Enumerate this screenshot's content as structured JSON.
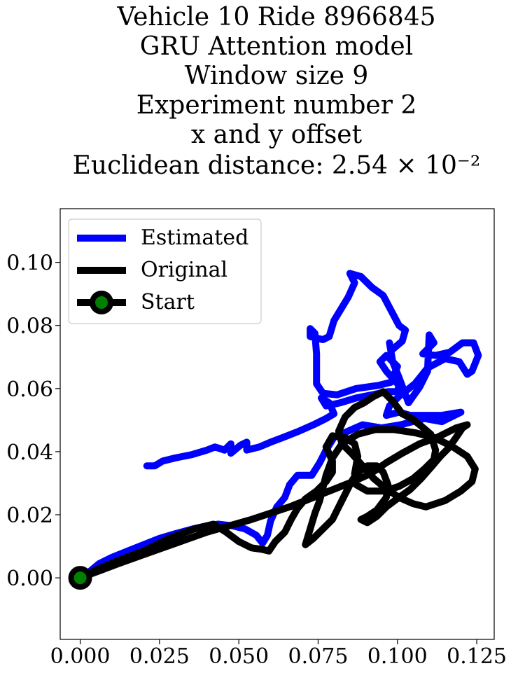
{
  "chart_data": {
    "type": "line",
    "title_lines": [
      "Vehicle 10 Ride 8966845",
      "GRU Attention model",
      "Window size 9",
      "Experiment number 2",
      "x and y offset",
      "Euclidean distance: 2.54 × 10⁻²"
    ],
    "xlabel": "",
    "ylabel": "",
    "xlim": [
      -0.0063,
      0.1305
    ],
    "ylim": [
      -0.0195,
      0.117
    ],
    "xticks": [
      0.0,
      0.025,
      0.05,
      0.075,
      0.1,
      0.125
    ],
    "xtick_labels": [
      "0.000",
      "0.025",
      "0.050",
      "0.075",
      "0.100",
      "0.125"
    ],
    "yticks": [
      0.0,
      0.02,
      0.04,
      0.06,
      0.08,
      0.1
    ],
    "ytick_labels": [
      "0.00",
      "0.02",
      "0.04",
      "0.06",
      "0.08",
      "0.10"
    ],
    "grid": false,
    "legend_position": "upper-left",
    "series": [
      {
        "name": "Estimated",
        "color": "#0000ff",
        "points": [
          [
            0.021,
            0.0355
          ],
          [
            0.0235,
            0.0355
          ],
          [
            0.026,
            0.037
          ],
          [
            0.03,
            0.038
          ],
          [
            0.035,
            0.039
          ],
          [
            0.04,
            0.0405
          ],
          [
            0.0425,
            0.0415
          ],
          [
            0.0455,
            0.0405
          ],
          [
            0.0475,
            0.0425
          ],
          [
            0.0475,
            0.0395
          ],
          [
            0.0505,
            0.042
          ],
          [
            0.0525,
            0.043
          ],
          [
            0.0525,
            0.0405
          ],
          [
            0.0565,
            0.0415
          ],
          [
            0.06,
            0.043
          ],
          [
            0.064,
            0.0445
          ],
          [
            0.069,
            0.0465
          ],
          [
            0.0735,
            0.0485
          ],
          [
            0.0775,
            0.0505
          ],
          [
            0.08,
            0.052
          ],
          [
            0.0785,
            0.0555
          ],
          [
            0.076,
            0.057
          ],
          [
            0.0775,
            0.0545
          ],
          [
            0.082,
            0.0555
          ],
          [
            0.087,
            0.057
          ],
          [
            0.092,
            0.058
          ],
          [
            0.097,
            0.059
          ],
          [
            0.1,
            0.059
          ],
          [
            0.1005,
            0.061
          ],
          [
            0.0965,
            0.0655
          ],
          [
            0.0945,
            0.0685
          ],
          [
            0.0965,
            0.0705
          ],
          [
            0.1,
            0.067
          ],
          [
            0.098,
            0.062
          ],
          [
            0.094,
            0.061
          ],
          [
            0.087,
            0.06
          ],
          [
            0.081,
            0.058
          ],
          [
            0.0765,
            0.0585
          ],
          [
            0.0745,
            0.0615
          ],
          [
            0.0745,
            0.071
          ],
          [
            0.074,
            0.0775
          ],
          [
            0.0725,
            0.079
          ],
          [
            0.0725,
            0.0765
          ],
          [
            0.0765,
            0.0755
          ],
          [
            0.0785,
            0.0765
          ],
          [
            0.08,
            0.0815
          ],
          [
            0.0845,
            0.089
          ],
          [
            0.0865,
            0.0935
          ],
          [
            0.085,
            0.0965
          ],
          [
            0.0885,
            0.0955
          ],
          [
            0.092,
            0.092
          ],
          [
            0.0955,
            0.0895
          ],
          [
            0.1005,
            0.08
          ],
          [
            0.1025,
            0.0785
          ],
          [
            0.1015,
            0.075
          ],
          [
            0.098,
            0.072
          ],
          [
            0.0975,
            0.0745
          ],
          [
            0.0985,
            0.0685
          ],
          [
            0.1005,
            0.0635
          ],
          [
            0.102,
            0.0595
          ],
          [
            0.1035,
            0.0555
          ],
          [
            0.107,
            0.0605
          ],
          [
            0.1095,
            0.0655
          ],
          [
            0.11,
            0.077
          ],
          [
            0.1115,
            0.0745
          ],
          [
            0.108,
            0.071
          ],
          [
            0.112,
            0.0705
          ],
          [
            0.1165,
            0.0715
          ],
          [
            0.1205,
            0.0745
          ],
          [
            0.124,
            0.0745
          ],
          [
            0.1255,
            0.0705
          ],
          [
            0.1235,
            0.0655
          ],
          [
            0.122,
            0.0645
          ],
          [
            0.1195,
            0.0685
          ],
          [
            0.115,
            0.0695
          ],
          [
            0.1095,
            0.0665
          ],
          [
            0.1055,
            0.0615
          ],
          [
            0.1005,
            0.0575
          ],
          [
            0.0975,
            0.0545
          ],
          [
            0.0965,
            0.0515
          ],
          [
            0.1005,
            0.0525
          ],
          [
            0.104,
            0.0515
          ],
          [
            0.1085,
            0.0515
          ],
          [
            0.114,
            0.0515
          ],
          [
            0.12,
            0.0525
          ],
          [
            0.114,
            0.0495
          ],
          [
            0.1085,
            0.0505
          ],
          [
            0.101,
            0.0485
          ],
          [
            0.095,
            0.0475
          ],
          [
            0.089,
            0.0485
          ],
          [
            0.0845,
            0.0465
          ],
          [
            0.08,
            0.0445
          ],
          [
            0.0775,
            0.0405
          ],
          [
            0.0755,
            0.0365
          ],
          [
            0.073,
            0.0325
          ],
          [
            0.0685,
            0.0325
          ],
          [
            0.066,
            0.0295
          ],
          [
            0.0645,
            0.0255
          ],
          [
            0.062,
            0.0225
          ],
          [
            0.06,
            0.018
          ],
          [
            0.059,
            0.0135
          ],
          [
            0.0575,
            0.011
          ],
          [
            0.0555,
            0.0135
          ],
          [
            0.052,
            0.0155
          ],
          [
            0.048,
            0.0165
          ],
          [
            0.0435,
            0.017
          ],
          [
            0.04,
            0.0165
          ],
          [
            0.0355,
            0.0155
          ],
          [
            0.03,
            0.014
          ],
          [
            0.025,
            0.0125
          ],
          [
            0.02,
            0.0105
          ],
          [
            0.015,
            0.0085
          ],
          [
            0.01,
            0.0065
          ],
          [
            0.006,
            0.0045
          ],
          [
            0.003,
            0.002
          ],
          [
            0.0,
            0.0
          ]
        ]
      },
      {
        "name": "Original",
        "color": "#000000",
        "points": [
          [
            0.0,
            0.0
          ],
          [
            0.005,
            0.0025
          ],
          [
            0.012,
            0.0055
          ],
          [
            0.02,
            0.0085
          ],
          [
            0.028,
            0.0125
          ],
          [
            0.036,
            0.0155
          ],
          [
            0.042,
            0.017
          ],
          [
            0.046,
            0.0145
          ],
          [
            0.05,
            0.0115
          ],
          [
            0.054,
            0.0095
          ],
          [
            0.0575,
            0.009
          ],
          [
            0.0595,
            0.0085
          ],
          [
            0.0615,
            0.0115
          ],
          [
            0.0645,
            0.0145
          ],
          [
            0.0665,
            0.0185
          ],
          [
            0.0685,
            0.022
          ],
          [
            0.071,
            0.025
          ],
          [
            0.0745,
            0.0275
          ],
          [
            0.0775,
            0.0305
          ],
          [
            0.0795,
            0.0335
          ],
          [
            0.0795,
            0.037
          ],
          [
            0.0775,
            0.0415
          ],
          [
            0.0795,
            0.045
          ],
          [
            0.0835,
            0.0445
          ],
          [
            0.0865,
            0.0425
          ],
          [
            0.0875,
            0.0385
          ],
          [
            0.0865,
            0.033
          ],
          [
            0.087,
            0.0295
          ],
          [
            0.0905,
            0.0275
          ],
          [
            0.096,
            0.0275
          ],
          [
            0.1005,
            0.029
          ],
          [
            0.105,
            0.0315
          ],
          [
            0.1085,
            0.0345
          ],
          [
            0.1115,
            0.0375
          ],
          [
            0.112,
            0.0405
          ],
          [
            0.1105,
            0.0455
          ],
          [
            0.107,
            0.0485
          ],
          [
            0.1045,
            0.0505
          ],
          [
            0.1015,
            0.052
          ],
          [
            0.0985,
            0.056
          ],
          [
            0.0955,
            0.059
          ],
          [
            0.0925,
            0.0575
          ],
          [
            0.0895,
            0.0555
          ],
          [
            0.0865,
            0.054
          ],
          [
            0.0835,
            0.051
          ],
          [
            0.0815,
            0.0465
          ],
          [
            0.0825,
            0.0425
          ],
          [
            0.0855,
            0.0395
          ],
          [
            0.089,
            0.0355
          ],
          [
            0.0925,
            0.0315
          ],
          [
            0.0955,
            0.029
          ],
          [
            0.1005,
            0.0255
          ],
          [
            0.105,
            0.0235
          ],
          [
            0.109,
            0.0225
          ],
          [
            0.115,
            0.0245
          ],
          [
            0.12,
            0.0275
          ],
          [
            0.1235,
            0.0305
          ],
          [
            0.1245,
            0.0345
          ],
          [
            0.122,
            0.0385
          ],
          [
            0.1175,
            0.0415
          ],
          [
            0.1115,
            0.0445
          ],
          [
            0.1055,
            0.046
          ],
          [
            0.099,
            0.047
          ],
          [
            0.093,
            0.047
          ],
          [
            0.0875,
            0.0455
          ],
          [
            0.0825,
            0.0425
          ],
          [
            0.0795,
            0.038
          ],
          [
            0.0775,
            0.0325
          ],
          [
            0.0765,
            0.0285
          ],
          [
            0.0755,
            0.0245
          ],
          [
            0.074,
            0.0205
          ],
          [
            0.0725,
            0.0155
          ],
          [
            0.071,
            0.0105
          ],
          [
            0.0735,
            0.0125
          ],
          [
            0.0765,
            0.0155
          ],
          [
            0.0795,
            0.0185
          ],
          [
            0.0815,
            0.0225
          ],
          [
            0.0835,
            0.0265
          ],
          [
            0.0855,
            0.0305
          ],
          [
            0.0875,
            0.0335
          ],
          [
            0.0905,
            0.0355
          ],
          [
            0.0935,
            0.0355
          ],
          [
            0.0955,
            0.0335
          ],
          [
            0.097,
            0.0295
          ],
          [
            0.0965,
            0.0255
          ],
          [
            0.0935,
            0.0215
          ],
          [
            0.0905,
            0.0195
          ],
          [
            0.0885,
            0.0185
          ],
          [
            0.0905,
            0.0175
          ],
          [
            0.0935,
            0.0195
          ],
          [
            0.0965,
            0.0225
          ],
          [
            0.1005,
            0.0255
          ],
          [
            0.104,
            0.028
          ],
          [
            0.1075,
            0.0315
          ],
          [
            0.111,
            0.0355
          ],
          [
            0.1135,
            0.0385
          ],
          [
            0.116,
            0.041
          ],
          [
            0.1185,
            0.0445
          ],
          [
            0.1205,
            0.0475
          ],
          [
            0.122,
            0.0485
          ],
          [
            0.1185,
            0.0475
          ],
          [
            0.1125,
            0.0445
          ],
          [
            0.107,
            0.0425
          ],
          [
            0.1015,
            0.0395
          ],
          [
            0.0965,
            0.0365
          ],
          [
            0.0915,
            0.033
          ],
          [
            0.086,
            0.0305
          ],
          [
            0.081,
            0.0285
          ],
          [
            0.076,
            0.0265
          ],
          [
            0.071,
            0.0245
          ],
          [
            0.066,
            0.0225
          ],
          [
            0.06,
            0.0205
          ],
          [
            0.054,
            0.0185
          ],
          [
            0.047,
            0.0165
          ],
          [
            0.04,
            0.0145
          ],
          [
            0.033,
            0.012
          ],
          [
            0.026,
            0.0095
          ],
          [
            0.019,
            0.007
          ],
          [
            0.012,
            0.0045
          ],
          [
            0.006,
            0.0022
          ],
          [
            0.0,
            0.0
          ]
        ]
      },
      {
        "name": "Start",
        "color": "#000000",
        "marker_face": "#008000",
        "points": [
          [
            0.0,
            0.0
          ]
        ]
      }
    ]
  }
}
